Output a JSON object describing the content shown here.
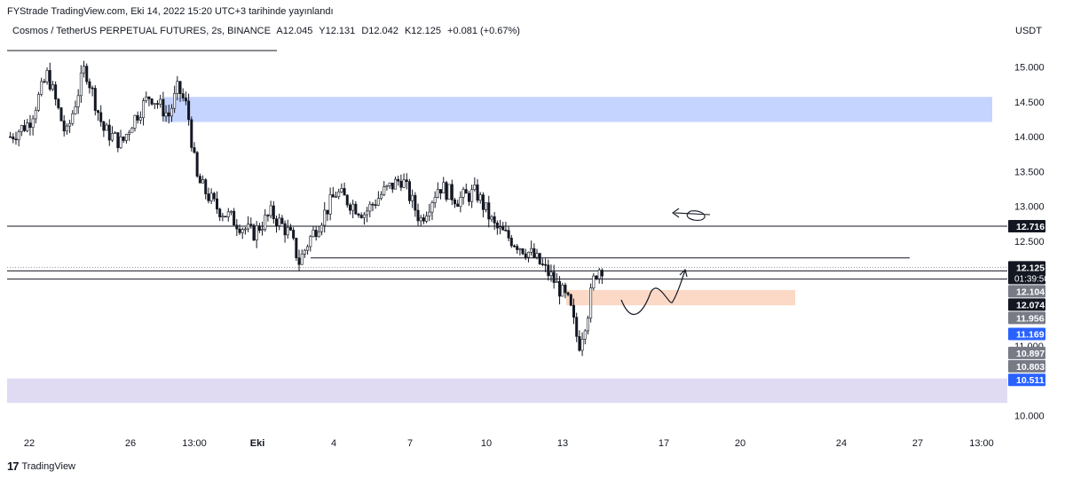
{
  "publish_line": "FYStrade TradingView.com, Eki 14, 2022 15:20 UTC+3 tarihinde yayınlandı",
  "header": {
    "symbol": "Cosmos / TetherUS PERPETUAL FUTURES, 2s, BINANCE",
    "open": "A12.045",
    "high": "Y12.131",
    "low": "D12.042",
    "close": "K12.125",
    "change": "+0.081 (+0.67%)"
  },
  "currency": "USDT",
  "footer": {
    "logo": "17",
    "brand": "TradingView"
  },
  "chart_data": {
    "type": "candlestick",
    "ylim": [
      9.75,
      15.35
    ],
    "x_tick_labels": [
      "22",
      "26",
      "13:00",
      "Eki",
      "4",
      "7",
      "10",
      "13",
      "17",
      "20",
      "24",
      "27",
      "13:00"
    ],
    "y_tick_labels": [
      "15.000",
      "14.500",
      "14.000",
      "13.500",
      "13.000",
      "12.500",
      "11.000",
      "10.000"
    ],
    "price_badges": [
      {
        "text": "12.716",
        "price": 12.716,
        "color": "#131722"
      },
      {
        "text": "12.125",
        "price": 12.125,
        "color": "#131722",
        "countdown": "01:39:50"
      },
      {
        "text": "12.104",
        "price": 11.87,
        "color": "#787b86"
      },
      {
        "text": "12.074",
        "price": 12.074,
        "color": "#131722"
      },
      {
        "text": "11.956",
        "price": 11.956,
        "color": "#787b86"
      },
      {
        "text": "11.169",
        "price": 11.169,
        "color": "#2962ff"
      },
      {
        "text": "10.897",
        "price": 10.897,
        "color": "#787b86"
      },
      {
        "text": "10.803",
        "price": 10.803,
        "color": "#787b86"
      },
      {
        "text": "10.511",
        "price": 10.511,
        "color": "#2962ff"
      }
    ],
    "horizontal_lines": [
      15.235,
      12.716,
      12.26,
      12.074,
      11.956
    ],
    "zones": [
      {
        "from": 14.21,
        "to": 14.57,
        "color": "#c5d4ff"
      },
      {
        "from": 10.18,
        "to": 10.53,
        "color": "#e1daf3"
      },
      {
        "from": 11.58,
        "to": 11.8,
        "color": "#fbd9c6"
      }
    ],
    "price_path": [
      [
        14.0,
        0.0
      ],
      [
        14.2,
        0.02
      ],
      [
        14.9,
        0.04
      ],
      [
        14.0,
        0.06
      ],
      [
        15.0,
        0.08
      ],
      [
        14.1,
        0.1
      ],
      [
        13.9,
        0.12
      ],
      [
        14.2,
        0.13
      ],
      [
        14.6,
        0.15
      ],
      [
        14.3,
        0.17
      ],
      [
        14.7,
        0.18
      ],
      [
        14.4,
        0.19
      ],
      [
        13.4,
        0.2
      ],
      [
        13.0,
        0.22
      ],
      [
        12.8,
        0.24
      ],
      [
        12.6,
        0.26
      ],
      [
        12.9,
        0.28
      ],
      [
        12.6,
        0.3
      ],
      [
        12.2,
        0.31
      ],
      [
        12.5,
        0.32
      ],
      [
        13.2,
        0.35
      ],
      [
        12.9,
        0.38
      ],
      [
        13.2,
        0.4
      ],
      [
        13.4,
        0.42
      ],
      [
        12.8,
        0.44
      ],
      [
        13.3,
        0.46
      ],
      [
        13.1,
        0.48
      ],
      [
        13.2,
        0.5
      ],
      [
        12.7,
        0.52
      ],
      [
        12.5,
        0.54
      ],
      [
        12.3,
        0.56
      ],
      [
        12.0,
        0.58
      ],
      [
        11.6,
        0.6
      ],
      [
        11.0,
        0.61
      ],
      [
        11.5,
        0.62
      ],
      [
        11.9,
        0.625
      ],
      [
        12.1,
        0.63
      ],
      [
        12.125,
        0.635
      ]
    ]
  }
}
